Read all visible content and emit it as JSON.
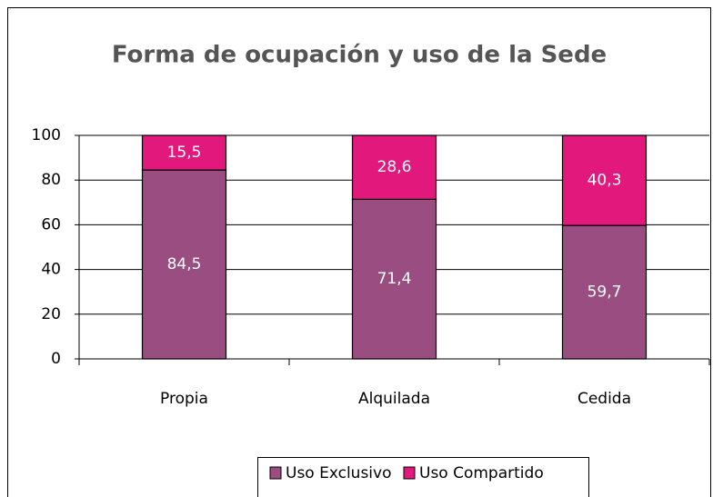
{
  "chart_data": {
    "type": "bar",
    "stacked": true,
    "title": "Forma de ocupación y uso de la Sede",
    "categories": [
      "Propia",
      "Alquilada",
      "Cedida"
    ],
    "series": [
      {
        "name": "Uso Exclusivo",
        "color": "#994d80",
        "values": [
          84.5,
          71.4,
          59.7
        ],
        "value_labels": [
          "84,5",
          "71,4",
          "59,7"
        ]
      },
      {
        "name": "Uso Compartido",
        "color": "#e2187c",
        "values": [
          15.5,
          28.6,
          40.3
        ],
        "value_labels": [
          "15,5",
          "28,6",
          "40,3"
        ]
      }
    ],
    "ylim": [
      0,
      100
    ],
    "yticks": [
      0,
      20,
      40,
      60,
      80,
      100
    ],
    "grid": true,
    "legend": "bottom"
  }
}
